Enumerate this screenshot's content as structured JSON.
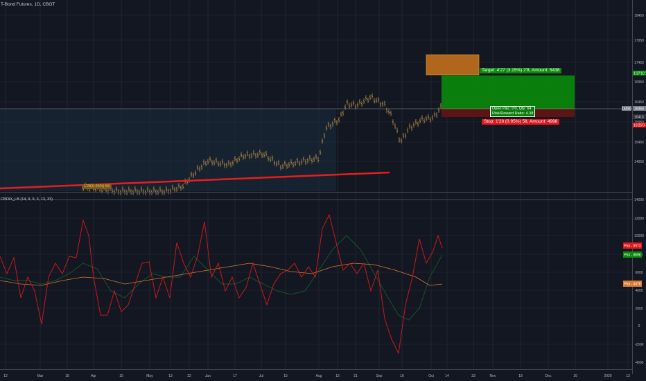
{
  "header": {
    "title": "T-Bond Futures, 1D, CBOT"
  },
  "indicator": {
    "label": "CBOIX_LB (14, 9, 9, 3, 13, 33)"
  },
  "colors": {
    "background": "#131722",
    "grid": "#363a45",
    "candle": "#d1a04a",
    "trendline": "#e81e1e",
    "target_zone": "#0a8a0a",
    "stop_zone": "#5c1414",
    "fast_line": "#c81a1a",
    "slow_line": "#15532c",
    "signal_line": "#d67a33"
  },
  "icons": {
    "alert_box": "orange-rectangle"
  },
  "price_axis": {
    "ticks": [
      "18450",
      "17950",
      "17450",
      "16950",
      "16450",
      "15950",
      "15450",
      "14950"
    ],
    "badges": {
      "target": "1'37'10",
      "current": "16450",
      "current2": "16450",
      "mid": "16415",
      "stop": "16'25'0"
    }
  },
  "osc_axis": {
    "ticks": [
      "14000",
      "12000",
      "10000",
      "8000",
      "6000",
      "4000",
      "2000",
      "0",
      "-2000",
      "-4000"
    ],
    "badges": {
      "fast": "Plot - 8973",
      "slow": "Plot - 8696",
      "signal": "Plot - 4478"
    }
  },
  "time_axis": {
    "ticks": [
      "12",
      "Mar",
      "18",
      "Apr",
      "15",
      "May",
      "13",
      "22",
      "Jun",
      "17",
      "Jul",
      "15",
      "Aug",
      "12",
      "21",
      "Sep",
      "16",
      "Oct",
      "14",
      "23",
      "Nov",
      "18",
      "Dec",
      "16",
      "2020",
      "13"
    ]
  },
  "position": {
    "target_label": "Target: 4'27 (3.15%) 2'8, Amount: 5438",
    "open_label": "Open P&L: 0'0, Qty: 64",
    "ratio_label": "Risk/Reward Ratio: 4.38",
    "stop_label": "Stop: 1'28 (0.95%) 58, Amount: 4998"
  },
  "trend_label": "1'28(0.95%) 58"
}
